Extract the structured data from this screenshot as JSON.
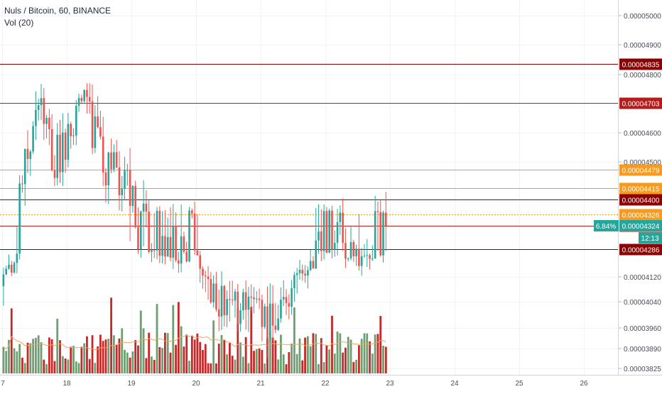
{
  "header": {
    "symbol_line": "Nuls / Bitcoin, 60, BINANCE",
    "volume_line": "Vol (20)"
  },
  "price_scale": {
    "ticks": [
      "0.00005000",
      "0.00004900",
      "0.00004800",
      "0.00004600",
      "0.00004500",
      "0.00004120",
      "0.00004040",
      "0.00003960",
      "0.00003890",
      "0.00003825"
    ]
  },
  "horizontal_lines": [
    {
      "price": "0.00004835",
      "color": "#8b0000"
    },
    {
      "price": "0.00004703",
      "color": "#b71c1c"
    },
    {
      "price": "0.00004479",
      "color": "#f79b1f"
    },
    {
      "price": "0.00004415",
      "color": "#f79b1f"
    },
    {
      "price": "0.00004400",
      "color": "#8b0000"
    },
    {
      "price": "0.00004326",
      "color": "#f79b1f"
    },
    {
      "price": "0.00004324",
      "color": "#b71c1c"
    },
    {
      "price": "0.00004286",
      "color": "#8b0000"
    }
  ],
  "current_price_marker": {
    "change_label": "6.84%",
    "price_label": "0.00004324",
    "countdown": "12:13",
    "color": "#26a69a"
  },
  "time_axis": {
    "labels": [
      "7",
      "18",
      "19",
      "20",
      "21",
      "22",
      "23",
      "24",
      "25",
      "26"
    ]
  },
  "colors": {
    "up": "#26a69a",
    "down": "#ef5350",
    "volume_up": "#6d9f71",
    "volume_down": "#c62828",
    "volume_ma": "#f7a35c"
  },
  "chart_data": {
    "type": "candlestick",
    "timeframe": "60",
    "y_range": [
      3.81e-05,
      5.05e-05
    ],
    "x_range_days": [
      "17",
      "26"
    ],
    "summary": {
      "start": 4.09e-05,
      "high": 4.78e-05,
      "low": 3.96e-05,
      "last": 4.324e-05
    }
  }
}
